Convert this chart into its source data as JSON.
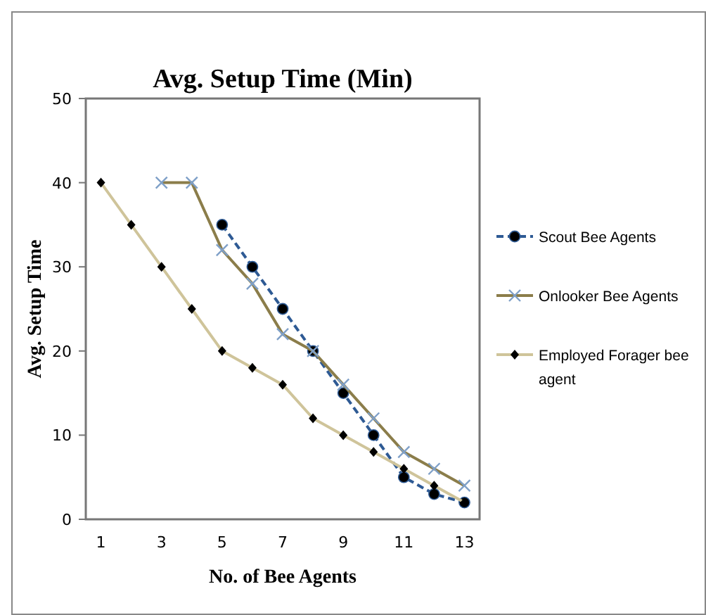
{
  "chart_data": {
    "type": "line",
    "title": "Avg. Setup Time (Min)",
    "xlabel": "No. of Bee Agents",
    "ylabel": "Avg. Setup Time",
    "xlim": [
      0.5,
      13.5
    ],
    "xticks": [
      1,
      3,
      5,
      7,
      9,
      11,
      13
    ],
    "ylim": [
      0,
      50
    ],
    "yticks": [
      0,
      10,
      20,
      30,
      40,
      50
    ],
    "grid": false,
    "legend": "right",
    "series": [
      {
        "name": "Scout Bee Agents",
        "color": "#2e5a94",
        "line_style": "dashed",
        "marker": "circle",
        "x": [
          5,
          6,
          7,
          8,
          9,
          10,
          11,
          12,
          13
        ],
        "values": [
          35,
          30,
          25,
          20,
          15,
          10,
          5,
          3,
          2
        ]
      },
      {
        "name": "Onlooker Bee Agents",
        "color": "#8b7d4a",
        "line_style": "solid",
        "marker": "cross",
        "x": [
          3,
          4,
          5,
          6,
          7,
          8,
          9,
          10,
          11,
          12,
          13
        ],
        "values": [
          40,
          40,
          32,
          28,
          22,
          20,
          16,
          12,
          8,
          6,
          4
        ]
      },
      {
        "name": "Employed Forager bee agent",
        "color": "#cfc49a",
        "line_style": "solid",
        "marker": "diamond",
        "x": [
          1,
          2,
          3,
          4,
          5,
          6,
          7,
          8,
          9,
          10,
          11,
          12,
          13
        ],
        "values": [
          40,
          35,
          30,
          25,
          20,
          18,
          16,
          12,
          10,
          8,
          6,
          4,
          2
        ]
      }
    ]
  }
}
